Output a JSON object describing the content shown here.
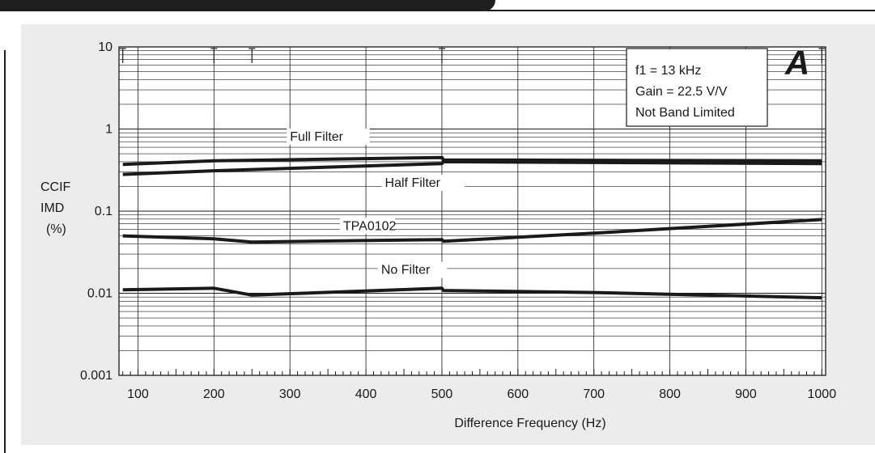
{
  "chart_data": {
    "type": "line",
    "panel_letter": "A",
    "xlabel": "Difference Frequency  (Hz)",
    "ylabel_lines": [
      "CCIF",
      "IMD",
      "(%)"
    ],
    "x_scale": "linear",
    "y_scale": "log",
    "xlim": [
      75,
      1005
    ],
    "ylim": [
      0.001,
      10
    ],
    "x_ticks": [
      100,
      200,
      300,
      400,
      500,
      600,
      700,
      800,
      900,
      1000
    ],
    "y_ticks": [
      {
        "value": 10,
        "label": "10"
      },
      {
        "value": 1,
        "label": "1"
      },
      {
        "value": 0.1,
        "label": "0.1"
      },
      {
        "value": 0.01,
        "label": "0.01"
      },
      {
        "value": 0.001,
        "label": "0.001"
      }
    ],
    "grid": true,
    "legend_box": {
      "lines": [
        "f1  = 13 kHz",
        "Gain = 22.5 V/V",
        "Not Band Limited"
      ],
      "placement": "top-right"
    },
    "series": [
      {
        "name": "Full Filter",
        "x": [
          80,
          200,
          500,
          502,
          1000
        ],
        "y": [
          0.37,
          0.41,
          0.45,
          0.42,
          0.41
        ],
        "label_at": [
          300,
          0.72
        ]
      },
      {
        "name": "Half Filter",
        "x": [
          80,
          200,
          500,
          502,
          1000
        ],
        "y": [
          0.28,
          0.31,
          0.38,
          0.4,
          0.38
        ],
        "label_at": [
          425,
          0.198
        ]
      },
      {
        "name": "TPA0102",
        "x": [
          80,
          200,
          250,
          500,
          502,
          700,
          1000
        ],
        "y": [
          0.05,
          0.046,
          0.042,
          0.045,
          0.043,
          0.054,
          0.079
        ],
        "label_at": [
          370,
          0.059
        ]
      },
      {
        "name": "No Filter",
        "x": [
          80,
          200,
          250,
          500,
          502,
          700,
          1000
        ],
        "y": [
          0.011,
          0.0115,
          0.0095,
          0.0115,
          0.0108,
          0.0102,
          0.0088
        ],
        "label_at": [
          420,
          0.0172
        ]
      }
    ]
  }
}
